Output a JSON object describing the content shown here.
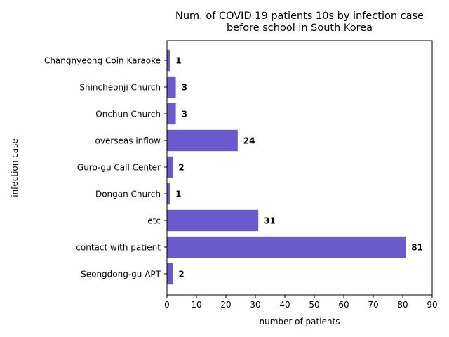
{
  "chart_data": {
    "type": "bar",
    "orientation": "horizontal",
    "title_lines": [
      "Num. of COVID 19 patients 10s by infection case",
      "before school in South Korea"
    ],
    "xlabel": "number of patients",
    "ylabel": "infection case",
    "xlim": [
      0,
      90
    ],
    "xticks": [
      0,
      10,
      20,
      30,
      40,
      50,
      60,
      70,
      80,
      90
    ],
    "categories": [
      "Seongdong-gu APT",
      "contact with patient",
      "etc",
      "Dongan Church",
      "Guro-gu Call Center",
      "overseas inflow",
      "Onchun Church",
      "Shincheonji Church",
      "Changnyeong Coin Karaoke"
    ],
    "values": [
      2,
      81,
      31,
      1,
      2,
      24,
      3,
      3,
      1
    ],
    "bar_color": "#6a5acd",
    "grid": false,
    "legend": "none"
  }
}
